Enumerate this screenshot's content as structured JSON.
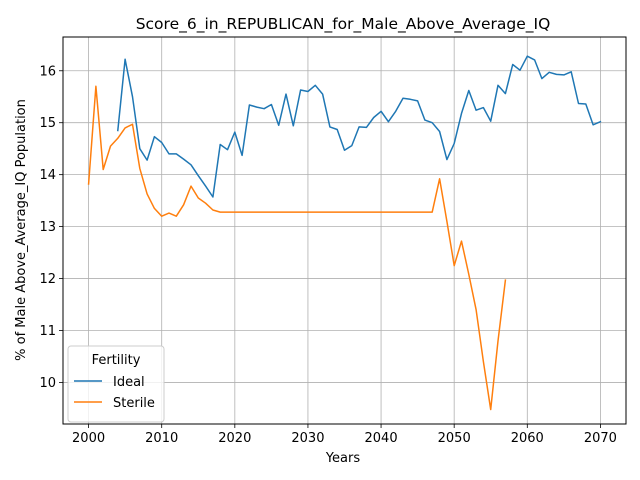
{
  "chart_data": {
    "type": "line",
    "title": "Score_6_in_REPUBLICAN_for_Male_Above_Average_IQ",
    "xlabel": "Years",
    "ylabel": "% of Male Above_Average_IQ Population",
    "xlim": [
      1996.5,
      2073.5
    ],
    "ylim": [
      9.2,
      16.65
    ],
    "x_ticks": [
      2000,
      2010,
      2020,
      2030,
      2040,
      2050,
      2060,
      2070
    ],
    "y_ticks": [
      10,
      11,
      12,
      13,
      14,
      15,
      16
    ],
    "grid": true,
    "legend": {
      "title": "Fertility",
      "placement": "lower-left"
    },
    "series": [
      {
        "name": "Ideal",
        "color": "#1f77b4",
        "x": [
          2004,
          2005,
          2006,
          2007,
          2008,
          2009,
          2010,
          2011,
          2012,
          2013,
          2014,
          2015,
          2016,
          2017,
          2018,
          2019,
          2020,
          2021,
          2022,
          2023,
          2024,
          2025,
          2026,
          2027,
          2028,
          2029,
          2030,
          2031,
          2032,
          2033,
          2034,
          2035,
          2036,
          2037,
          2038,
          2039,
          2040,
          2041,
          2042,
          2043,
          2044,
          2045,
          2046,
          2047,
          2048,
          2049,
          2050,
          2051,
          2052,
          2053,
          2054,
          2055,
          2056,
          2057,
          2058,
          2059,
          2060,
          2061,
          2062,
          2063,
          2064,
          2065,
          2066,
          2067,
          2068,
          2069,
          2070
        ],
        "y": [
          14.85,
          16.22,
          15.5,
          14.5,
          14.28,
          14.73,
          14.62,
          14.4,
          14.4,
          14.3,
          14.19,
          13.98,
          13.78,
          13.57,
          14.58,
          14.48,
          14.82,
          14.37,
          15.34,
          15.3,
          15.27,
          15.35,
          14.95,
          15.55,
          14.94,
          15.63,
          15.6,
          15.72,
          15.55,
          14.92,
          14.87,
          14.47,
          14.56,
          14.92,
          14.91,
          15.1,
          15.22,
          15.02,
          15.22,
          15.47,
          15.45,
          15.42,
          15.05,
          15.0,
          14.83,
          14.29,
          14.6,
          15.18,
          15.62,
          15.24,
          15.29,
          15.03,
          15.72,
          15.56,
          16.12,
          16.01,
          16.28,
          16.21,
          15.85,
          15.97,
          15.93,
          15.92,
          15.98,
          15.37,
          15.36,
          14.96,
          15.02
        ]
      },
      {
        "name": "Sterile",
        "color": "#ff7f0e",
        "x": [
          2000,
          2001,
          2002,
          2003,
          2004,
          2005,
          2006,
          2007,
          2008,
          2009,
          2010,
          2011,
          2012,
          2013,
          2014,
          2015,
          2016,
          2017,
          2018,
          2019,
          2020,
          2021,
          2022,
          2023,
          2024,
          2025,
          2026,
          2027,
          2028,
          2029,
          2030,
          2031,
          2032,
          2033,
          2034,
          2035,
          2036,
          2037,
          2038,
          2039,
          2040,
          2041,
          2042,
          2043,
          2044,
          2045,
          2046,
          2047,
          2048,
          2049,
          2050,
          2051,
          2052,
          2053,
          2054,
          2055,
          2056,
          2057
        ],
        "y": [
          13.82,
          15.7,
          14.1,
          14.55,
          14.7,
          14.9,
          14.97,
          14.12,
          13.63,
          13.35,
          13.2,
          13.26,
          13.2,
          13.42,
          13.78,
          13.55,
          13.45,
          13.32,
          13.28,
          13.28,
          13.28,
          13.28,
          13.28,
          13.28,
          13.28,
          13.28,
          13.28,
          13.28,
          13.28,
          13.28,
          13.28,
          13.28,
          13.28,
          13.28,
          13.28,
          13.28,
          13.28,
          13.28,
          13.28,
          13.28,
          13.28,
          13.28,
          13.28,
          13.28,
          13.28,
          13.28,
          13.28,
          13.28,
          13.92,
          13.1,
          12.25,
          12.72,
          12.08,
          11.4,
          10.4,
          9.48,
          10.8,
          11.97
        ]
      }
    ]
  }
}
